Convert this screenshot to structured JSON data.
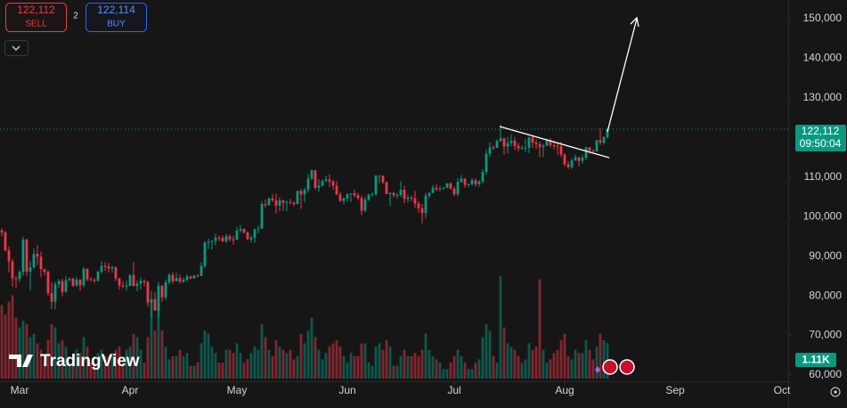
{
  "order_panel": {
    "sell_price": "122,112",
    "sell_label": "SELL",
    "spread": "2",
    "buy_price": "122,114",
    "buy_label": "BUY"
  },
  "watermark": "TradingView",
  "chart_data": {
    "type": "candlestick",
    "up_color": "#089981",
    "down_color": "#f23645",
    "last_price_label": "122,112",
    "countdown": "09:50:04",
    "volume_label": "1.11K",
    "xlim": [
      -0.5,
      220.75
    ],
    "xticks": [
      {
        "value": 5,
        "label": "Mar"
      },
      {
        "value": 36,
        "label": "Apr"
      },
      {
        "value": 66,
        "label": "May"
      },
      {
        "value": 97,
        "label": "Jun"
      },
      {
        "value": 127,
        "label": "Jul"
      },
      {
        "value": 158,
        "label": "Aug"
      },
      {
        "value": 189,
        "label": "Sep"
      },
      {
        "value": 219,
        "label": "Oct"
      }
    ],
    "ylim": [
      57975,
      154725
    ],
    "yticks": [
      {
        "value": 60000,
        "label": "60,000"
      },
      {
        "value": 70000,
        "label": "70,000"
      },
      {
        "value": 80000,
        "label": "80,000"
      },
      {
        "value": 90000,
        "label": "90,000"
      },
      {
        "value": 100000,
        "label": "100,000"
      },
      {
        "value": 110000,
        "label": "110,000"
      },
      {
        "value": 130000,
        "label": "130,000"
      },
      {
        "value": 140000,
        "label": "140,000"
      },
      {
        "value": 150000,
        "label": "150,000"
      }
    ],
    "candles": [
      [
        96500,
        97000,
        95000,
        96000
      ],
      [
        96000,
        96500,
        91200,
        91500
      ],
      [
        91500,
        92500,
        86000,
        88700
      ],
      [
        88700,
        89300,
        82300,
        84400
      ],
      [
        84400,
        85000,
        82000,
        84300
      ],
      [
        84300,
        86500,
        83500,
        86000
      ],
      [
        86000,
        95000,
        85100,
        94200
      ],
      [
        94200,
        94400,
        85000,
        86100
      ],
      [
        86100,
        88800,
        81400,
        87200
      ],
      [
        87200,
        92000,
        86800,
        90600
      ],
      [
        90600,
        92800,
        87800,
        89900
      ],
      [
        89900,
        91200,
        84700,
        86700
      ],
      [
        86700,
        86900,
        85200,
        86100
      ],
      [
        86100,
        86500,
        80000,
        80700
      ],
      [
        80700,
        83400,
        76600,
        78500
      ],
      [
        78500,
        83600,
        76600,
        82900
      ],
      [
        82900,
        84300,
        82000,
        83700
      ],
      [
        83700,
        84300,
        79900,
        81000
      ],
      [
        81000,
        85000,
        80800,
        84000
      ],
      [
        84000,
        84700,
        83600,
        84300
      ],
      [
        84300,
        84600,
        82200,
        82600
      ],
      [
        82600,
        84700,
        82300,
        84100
      ],
      [
        84100,
        84200,
        81300,
        82700
      ],
      [
        82700,
        87400,
        82100,
        86800
      ],
      [
        86800,
        87000,
        83700,
        84200
      ],
      [
        84200,
        84800,
        83700,
        84000
      ],
      [
        84000,
        84500,
        83200,
        83800
      ],
      [
        83800,
        86400,
        83600,
        86100
      ],
      [
        86100,
        88700,
        85600,
        87500
      ],
      [
        87500,
        88500,
        86300,
        87400
      ],
      [
        87400,
        88300,
        85900,
        86900
      ],
      [
        86900,
        87700,
        85900,
        87200
      ],
      [
        87200,
        87400,
        83700,
        84400
      ],
      [
        84400,
        84600,
        81600,
        82600
      ],
      [
        82600,
        83800,
        82000,
        82400
      ],
      [
        82400,
        83900,
        81300,
        82500
      ],
      [
        82500,
        85500,
        82400,
        85200
      ],
      [
        85200,
        88500,
        82300,
        82500
      ],
      [
        82500,
        83900,
        81200,
        83100
      ],
      [
        83100,
        84700,
        81600,
        83800
      ],
      [
        83800,
        84200,
        82400,
        83500
      ],
      [
        83500,
        83800,
        77200,
        78300
      ],
      [
        78300,
        81200,
        74500,
        79200
      ],
      [
        79200,
        80900,
        76200,
        76300
      ],
      [
        76300,
        83500,
        74600,
        82600
      ],
      [
        82600,
        82700,
        78500,
        79600
      ],
      [
        79600,
        84200,
        78900,
        83400
      ],
      [
        83400,
        85800,
        82800,
        85300
      ],
      [
        85300,
        86000,
        83000,
        83700
      ],
      [
        83700,
        85800,
        83600,
        84500
      ],
      [
        84500,
        85400,
        83100,
        83600
      ],
      [
        83600,
        84700,
        83200,
        84000
      ],
      [
        84000,
        85400,
        83700,
        84900
      ],
      [
        84900,
        85100,
        84200,
        84400
      ],
      [
        84400,
        85300,
        84300,
        85100
      ],
      [
        85100,
        85500,
        84700,
        85000
      ],
      [
        85000,
        88500,
        85000,
        87500
      ],
      [
        87500,
        93800,
        87000,
        93400
      ],
      [
        93400,
        94500,
        91800,
        93700
      ],
      [
        93700,
        94000,
        91700,
        93900
      ],
      [
        93900,
        95700,
        92800,
        94700
      ],
      [
        94700,
        95300,
        93900,
        94600
      ],
      [
        94600,
        95200,
        93600,
        93800
      ],
      [
        93800,
        95600,
        93300,
        95000
      ],
      [
        95000,
        95500,
        93700,
        94300
      ],
      [
        94300,
        95200,
        92900,
        94200
      ],
      [
        94200,
        97400,
        94100,
        96500
      ],
      [
        96500,
        97900,
        96000,
        96900
      ],
      [
        96900,
        97000,
        95700,
        96000
      ],
      [
        96000,
        96300,
        94100,
        94300
      ],
      [
        94300,
        95200,
        93500,
        94700
      ],
      [
        94700,
        97000,
        93400,
        96800
      ],
      [
        96800,
        97700,
        95800,
        97000
      ],
      [
        97000,
        103900,
        96900,
        103200
      ],
      [
        103200,
        104300,
        102300,
        102900
      ],
      [
        102900,
        104900,
        102800,
        104600
      ],
      [
        104600,
        105700,
        103700,
        104100
      ],
      [
        104100,
        105800,
        100800,
        102800
      ],
      [
        102800,
        104900,
        101400,
        104100
      ],
      [
        104100,
        104300,
        101500,
        103500
      ],
      [
        103500,
        104100,
        101400,
        103700
      ],
      [
        103700,
        104500,
        103100,
        103500
      ],
      [
        103500,
        103800,
        102600,
        103200
      ],
      [
        103200,
        106600,
        103100,
        106500
      ],
      [
        106500,
        107100,
        102000,
        105600
      ],
      [
        105600,
        107300,
        103700,
        106800
      ],
      [
        106800,
        110800,
        106100,
        109600
      ],
      [
        109600,
        111900,
        109300,
        111700
      ],
      [
        111700,
        111800,
        106800,
        107300
      ],
      [
        107300,
        109500,
        106300,
        107800
      ],
      [
        107800,
        109400,
        107600,
        109000
      ],
      [
        109000,
        110400,
        108700,
        109400
      ],
      [
        109400,
        110700,
        107500,
        108900
      ],
      [
        108900,
        109300,
        106800,
        107800
      ],
      [
        107800,
        108900,
        105400,
        105600
      ],
      [
        105600,
        106300,
        103700,
        104000
      ],
      [
        104000,
        104900,
        103100,
        104600
      ],
      [
        104600,
        105900,
        103900,
        105700
      ],
      [
        105700,
        105900,
        103700,
        105900
      ],
      [
        105900,
        106800,
        104900,
        105400
      ],
      [
        105400,
        106000,
        104200,
        104700
      ],
      [
        104700,
        105400,
        100400,
        101500
      ],
      [
        101500,
        105000,
        101100,
        104300
      ],
      [
        104300,
        105800,
        104000,
        105600
      ],
      [
        105600,
        106100,
        105000,
        105700
      ],
      [
        105700,
        110500,
        105200,
        110300
      ],
      [
        110300,
        110600,
        108400,
        110300
      ],
      [
        110300,
        110400,
        108300,
        108700
      ],
      [
        108700,
        108900,
        105700,
        105700
      ],
      [
        105700,
        106200,
        102700,
        106000
      ],
      [
        106000,
        106200,
        104900,
        105400
      ],
      [
        105400,
        106000,
        104500,
        105500
      ],
      [
        105500,
        108900,
        105000,
        106800
      ],
      [
        106800,
        107800,
        103400,
        104500
      ],
      [
        104500,
        105600,
        103600,
        104800
      ],
      [
        104800,
        105300,
        103900,
        104600
      ],
      [
        104600,
        106500,
        102300,
        103300
      ],
      [
        103300,
        103900,
        101000,
        102100
      ],
      [
        102100,
        103200,
        98300,
        100900
      ],
      [
        100900,
        106000,
        99600,
        105300
      ],
      [
        105300,
        106300,
        104700,
        106000
      ],
      [
        106000,
        108000,
        105900,
        107300
      ],
      [
        107300,
        108200,
        106400,
        106900
      ],
      [
        106900,
        107800,
        106400,
        107100
      ],
      [
        107100,
        107500,
        106800,
        107300
      ],
      [
        107300,
        108500,
        107200,
        108400
      ],
      [
        108400,
        108700,
        106800,
        107100
      ],
      [
        107100,
        107600,
        105200,
        105700
      ],
      [
        105700,
        109700,
        105100,
        108800
      ],
      [
        108800,
        110500,
        108600,
        109600
      ],
      [
        109600,
        109700,
        107300,
        108000
      ],
      [
        108000,
        108400,
        107500,
        108200
      ],
      [
        108200,
        109700,
        107800,
        109200
      ],
      [
        109200,
        109600,
        107500,
        108200
      ],
      [
        108200,
        109200,
        107500,
        108900
      ],
      [
        108900,
        111900,
        108400,
        111300
      ],
      [
        111300,
        116900,
        110600,
        115900
      ],
      [
        115900,
        118800,
        115200,
        117500
      ],
      [
        117500,
        118000,
        116900,
        117400
      ],
      [
        117400,
        119500,
        117300,
        119100
      ],
      [
        119100,
        123200,
        118900,
        119800
      ],
      [
        119800,
        119900,
        115700,
        117700
      ],
      [
        117700,
        120100,
        116000,
        118600
      ],
      [
        118600,
        120800,
        117800,
        119200
      ],
      [
        119200,
        120200,
        116800,
        117900
      ],
      [
        117900,
        118700,
        116500,
        117300
      ],
      [
        117300,
        118000,
        116900,
        117400
      ],
      [
        117400,
        119600,
        116400,
        117400
      ],
      [
        117400,
        120200,
        116100,
        120000
      ],
      [
        120000,
        120300,
        117400,
        118700
      ],
      [
        118700,
        119500,
        117100,
        118300
      ],
      [
        118300,
        119000,
        115000,
        117600
      ],
      [
        117600,
        118400,
        115100,
        117900
      ],
      [
        117900,
        119800,
        117800,
        119400
      ],
      [
        119400,
        119800,
        117500,
        118000
      ],
      [
        118000,
        119200,
        117000,
        117900
      ],
      [
        117900,
        118800,
        115600,
        117800
      ],
      [
        117800,
        118900,
        115000,
        115700
      ],
      [
        115700,
        116000,
        112700,
        113200
      ],
      [
        113200,
        114000,
        112000,
        112500
      ],
      [
        112500,
        114700,
        112100,
        114200
      ],
      [
        114200,
        115700,
        114100,
        115000
      ],
      [
        115000,
        115100,
        112700,
        114100
      ],
      [
        114100,
        115700,
        113400,
        114900
      ],
      [
        114900,
        117600,
        114300,
        117500
      ],
      [
        117500,
        117600,
        115900,
        116700
      ],
      [
        116700,
        117000,
        116300,
        116500
      ],
      [
        116500,
        119400,
        116500,
        119300
      ],
      [
        119300,
        122300,
        118100,
        118700
      ],
      [
        118700,
        120300,
        118200,
        120100
      ],
      [
        120100,
        122400,
        119700,
        122112
      ]
    ],
    "volume": [
      2300,
      2000,
      2400,
      2600,
      1900,
      1600,
      1800,
      1700,
      1300,
      1400,
      1100,
      900,
      500,
      1200,
      1700,
      1600,
      1100,
      1200,
      1000,
      500,
      600,
      900,
      800,
      1300,
      1000,
      500,
      500,
      800,
      900,
      700,
      700,
      800,
      900,
      1000,
      500,
      900,
      1000,
      1400,
      1300,
      900,
      500,
      1300,
      2400,
      1500,
      2600,
      1500,
      1000,
      600,
      700,
      700,
      900,
      700,
      800,
      400,
      400,
      500,
      1100,
      1500,
      1400,
      1000,
      800,
      500,
      500,
      900,
      900,
      800,
      1100,
      800,
      500,
      600,
      800,
      1000,
      900,
      1700,
      1300,
      900,
      700,
      1200,
      1000,
      900,
      800,
      900,
      600,
      700,
      1400,
      1100,
      1500,
      1900,
      1300,
      900,
      600,
      800,
      1000,
      1100,
      1200,
      1000,
      700,
      500,
      800,
      700,
      700,
      1100,
      1100,
      500,
      400,
      1000,
      1100,
      900,
      1200,
      1000,
      400,
      400,
      700,
      900,
      700,
      700,
      800,
      700,
      900,
      1400,
      900,
      700,
      600,
      500,
      300,
      300,
      500,
      700,
      900,
      700,
      500,
      300,
      300,
      500,
      600,
      1300,
      1700,
      1500,
      700,
      500,
      3200,
      1600,
      1100,
      1000,
      900,
      700,
      500,
      600,
      1100,
      900,
      1000,
      3100,
      900,
      500,
      600,
      800,
      900,
      1200,
      1400,
      700,
      600,
      900,
      800,
      800,
      1200,
      900,
      600,
      1000,
      1400,
      1200,
      1110
    ]
  }
}
